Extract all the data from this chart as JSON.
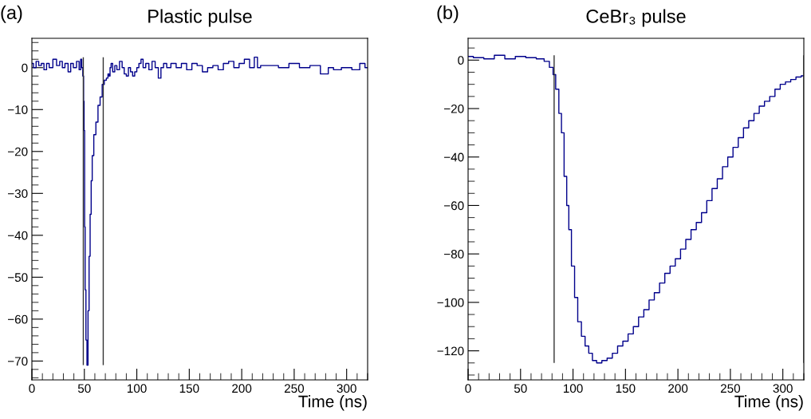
{
  "chart_data": [
    {
      "type": "step",
      "title": "Plastic pulse",
      "xlabel": "Time (ns)",
      "annotations": [
        "(a)"
      ],
      "grid": false,
      "legend": false,
      "series": [
        {
          "color": "#00008b",
          "x": [
            0,
            3,
            5,
            8,
            10,
            13,
            15,
            18,
            22,
            25,
            28,
            30,
            33,
            36,
            38,
            41,
            44,
            46,
            47,
            48,
            49,
            49.5,
            50,
            50.5,
            51,
            52,
            53,
            54,
            55,
            56,
            57,
            58,
            60,
            62,
            64,
            66,
            68,
            70,
            72,
            73,
            74,
            75,
            76,
            78,
            80,
            82,
            85,
            87,
            89,
            91,
            93,
            95,
            97,
            99,
            101,
            103,
            105,
            107,
            110,
            113,
            116,
            119,
            122,
            124,
            127,
            130,
            135,
            140,
            145,
            150,
            155,
            160,
            165,
            170,
            175,
            180,
            185,
            190,
            195,
            200,
            205,
            210,
            214,
            216,
            220,
            230,
            240,
            250,
            260,
            270,
            280,
            285,
            290,
            300,
            310,
            315,
            320
          ],
          "values": [
            1,
            0,
            1.5,
            0.5,
            1,
            -0.5,
            1,
            0,
            2,
            0.5,
            1.5,
            0,
            1,
            -1,
            1,
            0,
            1.5,
            -0.5,
            2,
            0,
            -2,
            -8,
            -15,
            -38,
            -53,
            -65,
            -71,
            -58,
            -45,
            -35,
            -27,
            -21,
            -16,
            -13,
            -9,
            -7,
            -4,
            -3,
            -2.5,
            -1.5,
            -2,
            0,
            1,
            -1,
            0.5,
            -0.5,
            1.5,
            0,
            -1.5,
            -2,
            0,
            -1,
            -2,
            -1,
            0,
            1,
            2,
            0,
            1,
            -0.5,
            1.5,
            0,
            -2.5,
            0,
            1,
            0,
            1,
            0,
            1,
            -0.5,
            1,
            0.5,
            -1,
            0,
            0.5,
            -0.5,
            1,
            1.5,
            0,
            1,
            2,
            0,
            2.5,
            0,
            0.5,
            0.5,
            0,
            1,
            0,
            0.5,
            -1.5,
            0,
            -0.5,
            0,
            -0.5,
            1,
            0
          ]
        }
      ],
      "ref_lines": [
        {
          "axis": "x",
          "value": 49,
          "color": "#333333"
        },
        {
          "axis": "x",
          "value": 68,
          "color": "#333333"
        }
      ],
      "xlim": [
        0,
        320
      ],
      "ylim": [
        -74.5,
        7
      ],
      "xticks": [
        0,
        {
          "value": 10,
          "label": null
        },
        {
          "value": 20,
          "label": null
        },
        {
          "value": 30,
          "label": null
        },
        {
          "value": 40,
          "label": null
        },
        50,
        {
          "value": 60,
          "label": null
        },
        {
          "value": 70,
          "label": null
        },
        {
          "value": 80,
          "label": null
        },
        {
          "value": 90,
          "label": null
        },
        100,
        {
          "value": 110,
          "label": null
        },
        {
          "value": 120,
          "label": null
        },
        {
          "value": 130,
          "label": null
        },
        {
          "value": 140,
          "label": null
        },
        150,
        {
          "value": 160,
          "label": null
        },
        {
          "value": 170,
          "label": null
        },
        {
          "value": 180,
          "label": null
        },
        {
          "value": 190,
          "label": null
        },
        200,
        {
          "value": 210,
          "label": null
        },
        {
          "value": 220,
          "label": null
        },
        {
          "value": 230,
          "label": null
        },
        {
          "value": 240,
          "label": null
        },
        250,
        {
          "value": 260,
          "label": null
        },
        {
          "value": 270,
          "label": null
        },
        {
          "value": 280,
          "label": null
        },
        {
          "value": 290,
          "label": null
        },
        300,
        {
          "value": 310,
          "label": null
        },
        {
          "value": 320,
          "label": null
        }
      ],
      "yticks": [
        {
          "value": -74,
          "label": null
        },
        {
          "value": -72,
          "label": null
        },
        {
          "value": -70,
          "label": "−70"
        },
        {
          "value": -68,
          "label": null
        },
        {
          "value": -66,
          "label": null
        },
        {
          "value": -64,
          "label": null
        },
        {
          "value": -62,
          "label": null
        },
        {
          "value": -60,
          "label": "−60"
        },
        {
          "value": -58,
          "label": null
        },
        {
          "value": -56,
          "label": null
        },
        {
          "value": -54,
          "label": null
        },
        {
          "value": -52,
          "label": null
        },
        {
          "value": -50,
          "label": "−50"
        },
        {
          "value": -48,
          "label": null
        },
        {
          "value": -46,
          "label": null
        },
        {
          "value": -44,
          "label": null
        },
        {
          "value": -42,
          "label": null
        },
        {
          "value": -40,
          "label": "−40"
        },
        {
          "value": -38,
          "label": null
        },
        {
          "value": -36,
          "label": null
        },
        {
          "value": -34,
          "label": null
        },
        {
          "value": -32,
          "label": null
        },
        {
          "value": -30,
          "label": "−30"
        },
        {
          "value": -28,
          "label": null
        },
        {
          "value": -26,
          "label": null
        },
        {
          "value": -24,
          "label": null
        },
        {
          "value": -22,
          "label": null
        },
        {
          "value": -20,
          "label": "−20"
        },
        {
          "value": -18,
          "label": null
        },
        {
          "value": -16,
          "label": null
        },
        {
          "value": -14,
          "label": null
        },
        {
          "value": -12,
          "label": null
        },
        {
          "value": -10,
          "label": "−10"
        },
        {
          "value": -8,
          "label": null
        },
        {
          "value": -6,
          "label": null
        },
        {
          "value": -4,
          "label": null
        },
        {
          "value": -2,
          "label": null
        },
        0,
        {
          "value": 2,
          "label": null
        },
        {
          "value": 4,
          "label": null
        },
        {
          "value": 6,
          "label": null
        }
      ]
    },
    {
      "type": "step",
      "title": "CeBr₃ pulse",
      "xlabel": "Time (ns)",
      "annotations": [
        "(b)"
      ],
      "grid": false,
      "legend": false,
      "series": [
        {
          "color": "#00008b",
          "x": [
            0,
            10,
            20,
            30,
            40,
            50,
            60,
            70,
            75,
            80,
            82,
            85,
            88,
            90,
            93,
            95,
            97,
            100,
            103,
            106,
            110,
            113,
            117,
            120,
            125,
            130,
            135,
            140,
            145,
            150,
            155,
            160,
            165,
            170,
            175,
            180,
            185,
            190,
            195,
            200,
            205,
            210,
            215,
            220,
            225,
            230,
            235,
            240,
            245,
            250,
            255,
            260,
            265,
            270,
            275,
            280,
            285,
            290,
            295,
            300,
            305,
            310,
            315,
            320
          ],
          "values": [
            1.5,
            1,
            0.5,
            2,
            0.5,
            1.5,
            1,
            0.5,
            -0.5,
            -3,
            -6,
            -12,
            -22,
            -30,
            -48,
            -60,
            -70,
            -85,
            -98,
            -108,
            -114,
            -118,
            -121,
            -124,
            -125,
            -124,
            -123,
            -121,
            -118,
            -116,
            -113,
            -110,
            -106,
            -103,
            -99,
            -96,
            -92,
            -88,
            -85,
            -82,
            -78,
            -74,
            -70,
            -67,
            -63,
            -58,
            -53,
            -49,
            -44,
            -40,
            -36,
            -32,
            -28,
            -25,
            -22,
            -19,
            -17,
            -15,
            -12,
            -10,
            -9,
            -8,
            -7,
            -6.5
          ]
        }
      ],
      "ref_lines": [
        {
          "axis": "x",
          "value": 82,
          "color": "#333333"
        },
        {
          "axis": "x",
          "value": 320,
          "color": "#333333"
        }
      ],
      "xlim": [
        0,
        320
      ],
      "ylim": [
        -132,
        9
      ],
      "xticks": [
        0,
        {
          "value": 10,
          "label": null
        },
        {
          "value": 20,
          "label": null
        },
        {
          "value": 30,
          "label": null
        },
        {
          "value": 40,
          "label": null
        },
        50,
        {
          "value": 60,
          "label": null
        },
        {
          "value": 70,
          "label": null
        },
        {
          "value": 80,
          "label": null
        },
        {
          "value": 90,
          "label": null
        },
        100,
        {
          "value": 110,
          "label": null
        },
        {
          "value": 120,
          "label": null
        },
        {
          "value": 130,
          "label": null
        },
        {
          "value": 140,
          "label": null
        },
        150,
        {
          "value": 160,
          "label": null
        },
        {
          "value": 170,
          "label": null
        },
        {
          "value": 180,
          "label": null
        },
        {
          "value": 190,
          "label": null
        },
        200,
        {
          "value": 210,
          "label": null
        },
        {
          "value": 220,
          "label": null
        },
        {
          "value": 230,
          "label": null
        },
        {
          "value": 240,
          "label": null
        },
        250,
        {
          "value": 260,
          "label": null
        },
        {
          "value": 270,
          "label": null
        },
        {
          "value": 280,
          "label": null
        },
        {
          "value": 290,
          "label": null
        },
        300,
        {
          "value": 310,
          "label": null
        },
        {
          "value": 320,
          "label": null
        }
      ],
      "yticks": [
        {
          "value": -130,
          "label": null
        },
        {
          "value": -125,
          "label": null
        },
        {
          "value": -120,
          "label": "−120"
        },
        {
          "value": -115,
          "label": null
        },
        {
          "value": -110,
          "label": null
        },
        {
          "value": -105,
          "label": null
        },
        {
          "value": -100,
          "label": "−100"
        },
        {
          "value": -95,
          "label": null
        },
        {
          "value": -90,
          "label": null
        },
        {
          "value": -85,
          "label": null
        },
        {
          "value": -80,
          "label": "−80"
        },
        {
          "value": -75,
          "label": null
        },
        {
          "value": -70,
          "label": null
        },
        {
          "value": -65,
          "label": null
        },
        {
          "value": -60,
          "label": "−60"
        },
        {
          "value": -55,
          "label": null
        },
        {
          "value": -50,
          "label": null
        },
        {
          "value": -45,
          "label": null
        },
        {
          "value": -40,
          "label": "−40"
        },
        {
          "value": -35,
          "label": null
        },
        {
          "value": -30,
          "label": null
        },
        {
          "value": -25,
          "label": null
        },
        {
          "value": -20,
          "label": "−20"
        },
        {
          "value": -15,
          "label": null
        },
        {
          "value": -10,
          "label": null
        },
        {
          "value": -5,
          "label": null
        },
        0,
        {
          "value": 5,
          "label": null
        }
      ]
    }
  ]
}
